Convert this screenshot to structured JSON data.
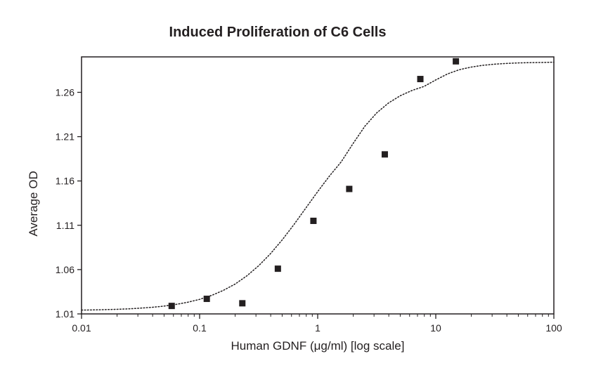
{
  "chart_data": {
    "type": "scatter",
    "title": "Induced Proliferation of C6 Cells",
    "xlabel": "Human GDNF (μg/ml) [log scale]",
    "ylabel": "Average OD",
    "x_scale": "log",
    "xlim": [
      0.01,
      100
    ],
    "ylim": [
      1.01,
      1.3
    ],
    "x_ticks": [
      0.01,
      0.1,
      1,
      10,
      100
    ],
    "x_tick_labels": [
      "0.01",
      "0.1",
      "1",
      "10",
      "100"
    ],
    "y_ticks": [
      1.01,
      1.06,
      1.11,
      1.16,
      1.21,
      1.26
    ],
    "y_tick_labels": [
      "1.01",
      "1.06",
      "1.11",
      "1.16",
      "1.21",
      "1.26"
    ],
    "grid": false,
    "legend": "none",
    "series": [
      {
        "type": "scatter",
        "marker": "square",
        "color": "#231f20",
        "x": [
          0.058,
          0.115,
          0.23,
          0.46,
          0.92,
          1.85,
          3.7,
          7.4,
          14.8
        ],
        "y": [
          1.019,
          1.027,
          1.022,
          1.061,
          1.115,
          1.151,
          1.19,
          1.275,
          1.295
        ]
      },
      {
        "type": "line",
        "style": "dotted",
        "color": "#231f20",
        "x": [
          0.01,
          0.0125,
          0.0158,
          0.02,
          0.025,
          0.0316,
          0.04,
          0.05,
          0.063,
          0.079,
          0.1,
          0.126,
          0.158,
          0.2,
          0.251,
          0.316,
          0.398,
          0.501,
          0.631,
          0.794,
          1.0,
          1.26,
          1.58,
          2.0,
          2.51,
          3.16,
          3.98,
          5.01,
          6.31,
          7.94,
          10.0,
          12.6,
          15.8,
          20.0,
          25.1,
          31.6,
          39.8,
          50.1,
          63.1,
          79.4,
          100
        ],
        "y": [
          1.0143,
          1.0145,
          1.0148,
          1.0152,
          1.0157,
          1.0165,
          1.0175,
          1.0188,
          1.0207,
          1.0231,
          1.0264,
          1.0308,
          1.0364,
          1.0437,
          1.0529,
          1.0643,
          1.0779,
          1.0936,
          1.111,
          1.1295,
          1.148,
          1.1657,
          1.1815,
          1.2025,
          1.2218,
          1.2368,
          1.248,
          1.2562,
          1.2622,
          1.2666,
          1.274,
          1.2808,
          1.2855,
          1.2885,
          1.2905,
          1.2918,
          1.2926,
          1.2932,
          1.2935,
          1.2937,
          1.294
        ]
      }
    ]
  }
}
